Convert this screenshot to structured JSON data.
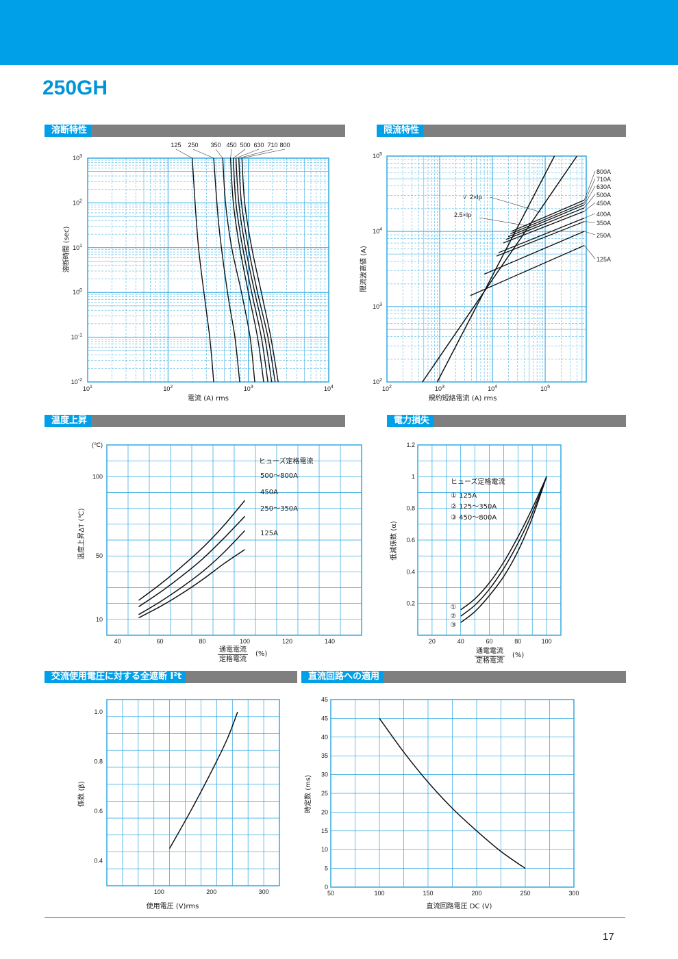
{
  "header": {
    "model": "250GH",
    "page_number": "17"
  },
  "sections": [
    {
      "id": "s1",
      "title": "溶断特性"
    },
    {
      "id": "s2",
      "title": "限流特性"
    },
    {
      "id": "s3",
      "title": "温度上昇"
    },
    {
      "id": "s4",
      "title": "電力損失"
    },
    {
      "id": "s5",
      "title": "交流使用電圧に対する全遮断 I²t"
    },
    {
      "id": "s6",
      "title": "直流回路への適用"
    }
  ],
  "chart_data": [
    {
      "id": "melt",
      "type": "line",
      "xlabel": "電流 (A) rms",
      "ylabel": "溶断時間 (sec)",
      "xscale": "log",
      "yscale": "log",
      "xlim": [
        10,
        10000
      ],
      "ylim": [
        0.01,
        1000
      ],
      "xticks": [
        {
          "base": "10",
          "exp": "1"
        },
        {
          "base": "10",
          "exp": "2"
        },
        {
          "base": "10",
          "exp": "3"
        },
        {
          "base": "10",
          "exp": "4"
        }
      ],
      "yticks": [
        {
          "base": "10",
          "exp": "3"
        },
        {
          "base": "10",
          "exp": "2"
        },
        {
          "base": "10",
          "exp": "1"
        },
        {
          "base": "10",
          "exp": "0"
        },
        {
          "base": "10",
          "exp": "-1"
        },
        {
          "base": "10",
          "exp": "-2"
        }
      ],
      "series": [
        {
          "name": "125",
          "points": [
            [
              200,
              1000
            ],
            [
              240,
              10
            ],
            [
              330,
              0.1
            ],
            [
              370,
              0.01
            ]
          ]
        },
        {
          "name": "250",
          "points": [
            [
              370,
              1000
            ],
            [
              430,
              30
            ],
            [
              550,
              1
            ],
            [
              680,
              0.1
            ],
            [
              780,
              0.01
            ]
          ]
        },
        {
          "name": "350",
          "points": [
            [
              480,
              1000
            ],
            [
              520,
              100
            ],
            [
              620,
              10
            ],
            [
              820,
              1
            ],
            [
              1050,
              0.1
            ],
            [
              1200,
              0.01
            ]
          ]
        },
        {
          "name": "450",
          "points": [
            [
              600,
              1000
            ],
            [
              650,
              100
            ],
            [
              780,
              10
            ],
            [
              1000,
              1
            ],
            [
              1300,
              0.1
            ],
            [
              1550,
              0.01
            ]
          ]
        },
        {
          "name": "500",
          "points": [
            [
              650,
              1000
            ],
            [
              700,
              100
            ],
            [
              850,
              10
            ],
            [
              1100,
              1
            ],
            [
              1450,
              0.1
            ],
            [
              1750,
              0.01
            ]
          ]
        },
        {
          "name": "630",
          "points": [
            [
              700,
              1000
            ],
            [
              760,
              100
            ],
            [
              920,
              10
            ],
            [
              1200,
              1
            ],
            [
              1600,
              0.1
            ],
            [
              1950,
              0.01
            ]
          ]
        },
        {
          "name": "710",
          "points": [
            [
              760,
              1000
            ],
            [
              820,
              100
            ],
            [
              1000,
              10
            ],
            [
              1300,
              1
            ],
            [
              1750,
              0.1
            ],
            [
              2150,
              0.01
            ]
          ]
        },
        {
          "name": "800",
          "points": [
            [
              830,
              1000
            ],
            [
              900,
              100
            ],
            [
              1100,
              10
            ],
            [
              1450,
              1
            ],
            [
              1900,
              0.1
            ],
            [
              2350,
              0.01
            ]
          ]
        }
      ]
    },
    {
      "id": "limit",
      "type": "line",
      "xlabel": "規約短絡電流 (A) rms",
      "ylabel": "限流波高値 (A)",
      "xscale": "log",
      "yscale": "log",
      "xlim": [
        100,
        600000
      ],
      "ylim": [
        100,
        100000
      ],
      "xticks": [
        {
          "base": "10",
          "exp": "2"
        },
        {
          "base": "10",
          "exp": "3"
        },
        {
          "base": "10",
          "exp": "4"
        },
        {
          "base": "10",
          "exp": "5"
        }
      ],
      "yticks": [
        {
          "base": "10",
          "exp": "5"
        },
        {
          "base": "10",
          "exp": "4"
        },
        {
          "base": "10",
          "exp": "3"
        },
        {
          "base": "10",
          "exp": "2"
        }
      ],
      "reference_lines": [
        {
          "label_prefix": "√",
          "label": "2×Ip",
          "points": [
            [
              470,
              100
            ],
            [
              400000,
              100000
            ]
          ]
        },
        {
          "label": "2.5×Ip",
          "points": [
            [
              900,
              100
            ],
            [
              150000,
              100000
            ]
          ]
        }
      ],
      "series": [
        {
          "name": "800A",
          "points": [
            [
              23000,
              10000
            ],
            [
              550000,
              26000
            ]
          ]
        },
        {
          "name": "710A",
          "points": [
            [
              22000,
              9300
            ],
            [
              550000,
              24000
            ]
          ]
        },
        {
          "name": "630A",
          "points": [
            [
              20000,
              8500
            ],
            [
              550000,
              22500
            ]
          ]
        },
        {
          "name": "500A",
          "points": [
            [
              18000,
              7800
            ],
            [
              550000,
              20500
            ]
          ]
        },
        {
          "name": "450A",
          "points": [
            [
              16000,
              7000
            ],
            [
              550000,
              18500
            ]
          ]
        },
        {
          "name": "400A",
          "points": [
            [
              13000,
              5200
            ],
            [
              550000,
              15000
            ]
          ]
        },
        {
          "name": "350A",
          "points": [
            [
              12000,
              4700
            ],
            [
              550000,
              13500
            ]
          ]
        },
        {
          "name": "250A",
          "points": [
            [
              7000,
              2700
            ],
            [
              550000,
              10000
            ]
          ]
        },
        {
          "name": "125A",
          "points": [
            [
              3800,
              1400
            ],
            [
              550000,
              6500
            ]
          ]
        }
      ]
    },
    {
      "id": "temp",
      "type": "line",
      "xlabel_num": "通電電流",
      "xlabel_den": "定格電流",
      "xunit": "(%)",
      "ylabel": "温度上昇ΔT (℃)",
      "yunit": "(℃)",
      "xlim": [
        35,
        155
      ],
      "ylim": [
        0,
        120
      ],
      "xticks": [
        "40",
        "60",
        "80",
        "100",
        "120",
        "140"
      ],
      "yticks": [
        {
          "v": 100,
          "t": "100"
        },
        {
          "v": 50,
          "t": "50"
        },
        {
          "v": 10,
          "t": "10"
        }
      ],
      "legend_title": "ヒューズ定格電流",
      "series": [
        {
          "name": "500～800A",
          "points": [
            [
              50,
              22
            ],
            [
              60,
              32
            ],
            [
              70,
              43
            ],
            [
              80,
              55
            ],
            [
              90,
              69
            ],
            [
              100,
              85
            ]
          ]
        },
        {
          "name": "450A",
          "points": [
            [
              50,
              18
            ],
            [
              60,
              27
            ],
            [
              70,
              37
            ],
            [
              80,
              48
            ],
            [
              90,
              61
            ],
            [
              100,
              75
            ]
          ]
        },
        {
          "name": "250～350A",
          "points": [
            [
              50,
              13
            ],
            [
              60,
              21
            ],
            [
              70,
              30
            ],
            [
              80,
              40
            ],
            [
              90,
              52
            ],
            [
              100,
              66
            ]
          ]
        },
        {
          "name": "125A",
          "points": [
            [
              50,
              11
            ],
            [
              60,
              18
            ],
            [
              70,
              26
            ],
            [
              80,
              35
            ],
            [
              90,
              45
            ],
            [
              100,
              54
            ]
          ]
        }
      ]
    },
    {
      "id": "loss",
      "type": "line",
      "xlabel_num": "通電電流",
      "xlabel_den": "定格電流",
      "xunit": "(%)",
      "ylabel": "低減係数 (α)",
      "xlim": [
        10,
        110
      ],
      "ylim": [
        0,
        1.2
      ],
      "xticks": [
        "20",
        "40",
        "60",
        "80",
        "100"
      ],
      "yticks": [
        "1.2",
        "1",
        "0.8",
        "0.6",
        "0.4",
        "0.2"
      ],
      "legend_title": "ヒューズ定格電流",
      "series": [
        {
          "name": "125A",
          "marker": "①",
          "points": [
            [
              40,
              0.16
            ],
            [
              50,
              0.23
            ],
            [
              60,
              0.33
            ],
            [
              70,
              0.46
            ],
            [
              80,
              0.62
            ],
            [
              90,
              0.8
            ],
            [
              100,
              1.0
            ]
          ]
        },
        {
          "name": "125～350A",
          "marker": "②",
          "points": [
            [
              40,
              0.12
            ],
            [
              50,
              0.19
            ],
            [
              60,
              0.29
            ],
            [
              70,
              0.42
            ],
            [
              80,
              0.58
            ],
            [
              90,
              0.77
            ],
            [
              100,
              1.0
            ]
          ]
        },
        {
          "name": "450～800A",
          "marker": "③",
          "points": [
            [
              40,
              0.08
            ],
            [
              50,
              0.15
            ],
            [
              60,
              0.25
            ],
            [
              70,
              0.37
            ],
            [
              80,
              0.53
            ],
            [
              90,
              0.74
            ],
            [
              100,
              1.0
            ]
          ]
        }
      ]
    },
    {
      "id": "i2t",
      "type": "line",
      "xlabel": "使用電圧 (V)rms",
      "ylabel": "係数 (β)",
      "xlim": [
        0,
        330
      ],
      "ylim": [
        0.3,
        1.05
      ],
      "xticks": [
        "100",
        "200",
        "300"
      ],
      "yticks": [
        "1.0",
        "0.8",
        "0.6",
        "0.4"
      ],
      "series": [
        {
          "name": "",
          "points": [
            [
              120,
              0.45
            ],
            [
              160,
              0.6
            ],
            [
              200,
              0.76
            ],
            [
              230,
              0.89
            ],
            [
              250,
              1.0
            ]
          ]
        }
      ]
    },
    {
      "id": "dc",
      "type": "line",
      "xlabel": "直流回路電圧 DC (V)",
      "ylabel": "時定数 (ms)",
      "xlim": [
        50,
        300
      ],
      "ylim": [
        0,
        50
      ],
      "xticks": [
        "50",
        "100",
        "150",
        "200",
        "250",
        "300"
      ],
      "yticks": [
        "45",
        "45",
        "40",
        "35",
        "30",
        "25",
        "20",
        "15",
        "10",
        "5",
        "0"
      ],
      "series": [
        {
          "name": "",
          "points": [
            [
              100,
              45
            ],
            [
              125,
              36
            ],
            [
              150,
              28
            ],
            [
              175,
              21
            ],
            [
              200,
              15
            ],
            [
              225,
              9.5
            ],
            [
              250,
              5
            ]
          ]
        }
      ]
    }
  ]
}
